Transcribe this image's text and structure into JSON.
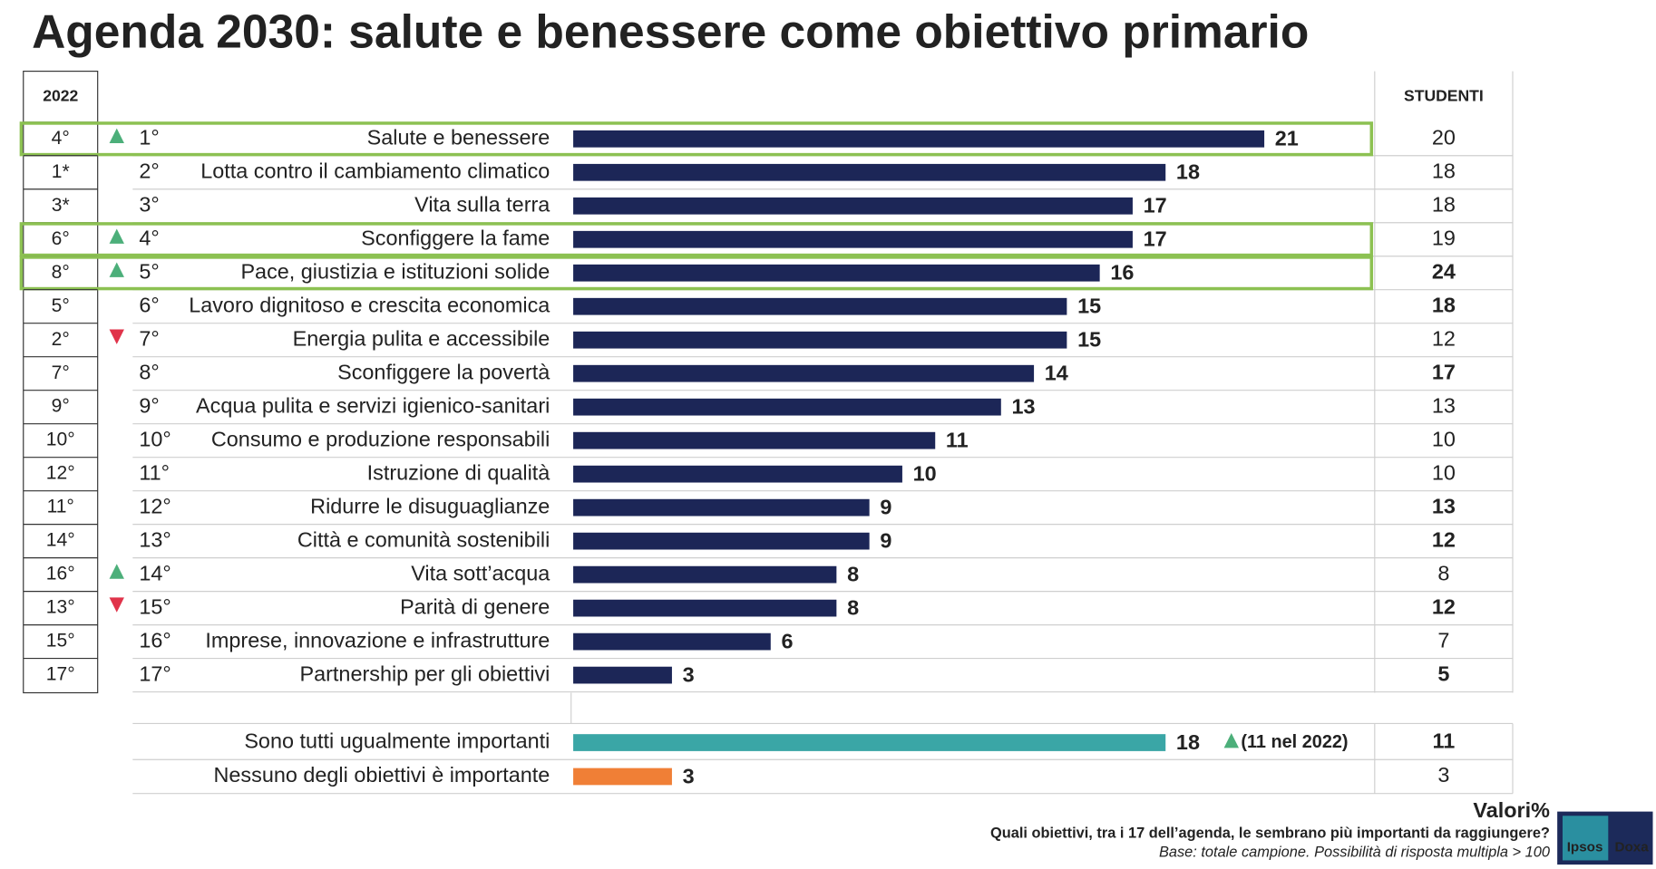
{
  "chart_data": {
    "type": "bar",
    "title": "Agenda 2030: salute e benessere come obiettivo primario",
    "header_2022": "2022",
    "header_students": "STUDENTI",
    "color": "#1c2657",
    "categories": [
      "Salute e benessere",
      "Lotta contro il cambiamento climatico",
      "Vita sulla terra",
      "Sconfiggere la fame",
      "Pace, giustizia e istituzioni solide",
      "Lavoro dignitoso e crescita economica",
      "Energia pulita e accessibile",
      "Sconfiggere la povertà",
      "Acqua pulita e servizi igienico-sanitari",
      "Consumo e produzione responsabili",
      "Istruzione di qualità",
      "Ridurre le disuguaglianze",
      "Città e comunità sostenibili",
      "Vita sott’acqua",
      "Parità di genere",
      "Imprese, innovazione e infrastrutture",
      "Partnership per gli obiettivi"
    ],
    "ranks": [
      "1°",
      "2°",
      "3°",
      "4°",
      "5°",
      "6°",
      "7°",
      "8°",
      "9°",
      "10°",
      "11°",
      "12°",
      "13°",
      "14°",
      "15°",
      "16°",
      "17°"
    ],
    "ranks_2022": [
      "4°",
      "1*",
      "3*",
      "6°",
      "8°",
      "5°",
      "2°",
      "7°",
      "9°",
      "10°",
      "12°",
      "11°",
      "14°",
      "16°",
      "13°",
      "15°",
      "17°"
    ],
    "trend": [
      "up",
      null,
      null,
      "up",
      "up",
      null,
      "down",
      null,
      null,
      null,
      null,
      null,
      null,
      "up",
      "down",
      null,
      null
    ],
    "highlight": [
      true,
      false,
      false,
      true,
      true,
      false,
      false,
      false,
      false,
      false,
      false,
      false,
      false,
      false,
      false,
      false,
      false
    ],
    "values": [
      21,
      18,
      17,
      17,
      16,
      15,
      15,
      14,
      13,
      11,
      10,
      9,
      9,
      8,
      8,
      6,
      3
    ],
    "students": [
      20,
      18,
      18,
      19,
      24,
      18,
      12,
      17,
      13,
      10,
      10,
      13,
      12,
      8,
      12,
      7,
      5
    ],
    "students_colors": [
      "#222",
      "#222",
      "#222",
      "#222",
      "#2aa3b0",
      "#2aa3b0",
      "#222",
      "#2aa3b0",
      "#222",
      "#222",
      "#222",
      "#2aa3b0",
      "#2aa3b0",
      "#222",
      "#2aa3b0",
      "#222",
      "#2aa3b0"
    ],
    "extra_rows": [
      {
        "label": "Sono tutti ugualmente importanti",
        "value": 18,
        "color": "#3aa6a6",
        "note": "(11 nel 2022)",
        "note_trend": "up",
        "students": 11,
        "students_color": "#f07f36"
      },
      {
        "label": "Nessuno degli obiettivi è importante",
        "value": 3,
        "color": "#f07f36",
        "students": 3,
        "students_color": "#222"
      }
    ],
    "unit_note": "Valori%",
    "question": "Quali obiettivi, tra i 17 dell’agenda, le sembrano più importanti da raggiungere?",
    "base": "Base: totale campione. Possibilità di risposta multipla > 100",
    "logo": [
      "Ipsos",
      "Doxa"
    ]
  }
}
